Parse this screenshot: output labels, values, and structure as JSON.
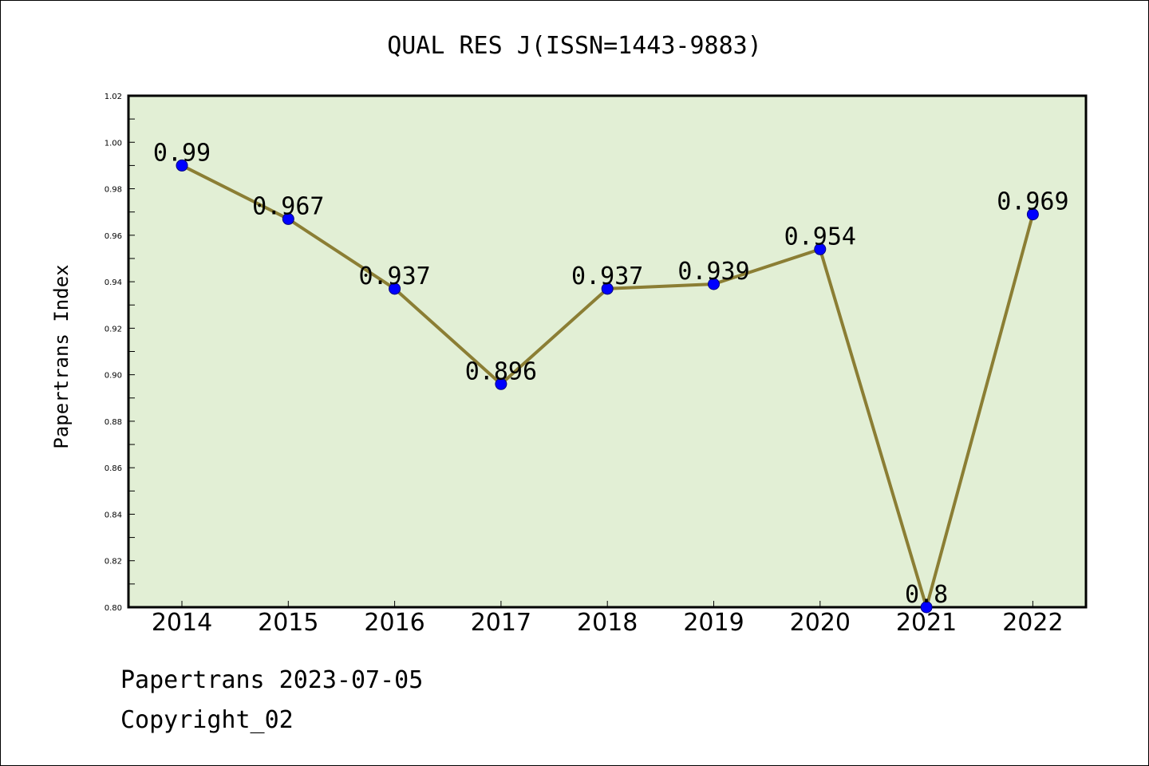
{
  "chart_data": {
    "type": "line",
    "title": "QUAL RES J(ISSN=1443-9883)",
    "xlabel": "",
    "ylabel": "Papertrans Index",
    "categories": [
      "2014",
      "2015",
      "2016",
      "2017",
      "2018",
      "2019",
      "2020",
      "2021",
      "2022"
    ],
    "series": [
      {
        "values": [
          0.99,
          0.967,
          0.937,
          0.896,
          0.937,
          0.939,
          0.954,
          0.8,
          0.969
        ],
        "labels": [
          "0.99",
          "0.967",
          "0.937",
          "0.896",
          "0.937",
          "0.939",
          "0.954",
          "0.8",
          "0.969"
        ]
      }
    ],
    "ylim": [
      0.8,
      1.02
    ],
    "yticks": [
      "0.80",
      "0.82",
      "0.84",
      "0.86",
      "0.88",
      "0.90",
      "0.92",
      "0.94",
      "0.96",
      "0.98",
      "1.00",
      "1.02"
    ],
    "grid": false,
    "legend": "none",
    "colors": {
      "plot_background": "#e2efd5",
      "line": "#8b7e34",
      "marker": "#0000ff"
    }
  },
  "footer": {
    "source": "Papertrans 2023-07-05",
    "copyright": "Copyright_02"
  }
}
